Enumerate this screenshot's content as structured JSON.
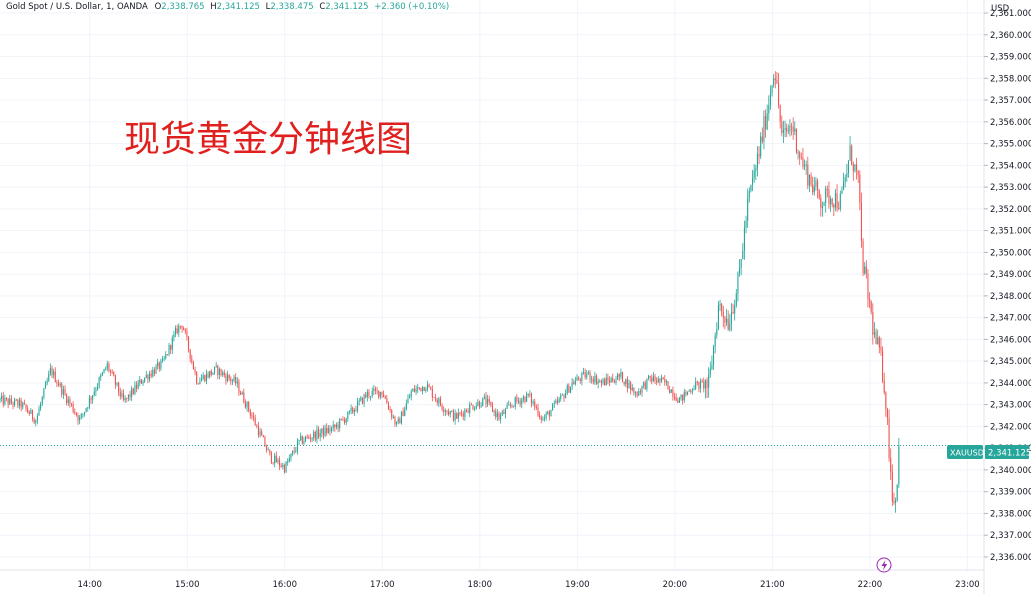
{
  "legend": {
    "symbol": "Gold Spot / U.S. Dollar, 1, OANDA",
    "o_label": "O",
    "o_value": "2,338.765",
    "h_label": "H",
    "h_value": "2,341.125",
    "l_label": "L",
    "l_value": "2,338.475",
    "c_label": "C",
    "c_value": "2,341.125",
    "change": "+2.360 (+0.10%)"
  },
  "annotation": "现货黄金分钟线图",
  "currency_label": "USD",
  "price_tag": {
    "symbol": "XAUUSD",
    "price": "2,341.125"
  },
  "lightning_icon": "lightning-icon",
  "colors": {
    "up": "#26a69a",
    "down": "#ef5350",
    "grid": "#f0f3fa",
    "axis_text": "#131722",
    "annotation": "#e0201e",
    "tag_bg": "#26a69a"
  },
  "chart_data": {
    "type": "candlestick",
    "title": "",
    "xlabel": "",
    "ylabel": "USD",
    "ylim": [
      2335.4,
      2361.6
    ],
    "x_range_hours": [
      13.08,
      23.17
    ],
    "x_ticks": [
      "14:00",
      "15:00",
      "16:00",
      "17:00",
      "18:00",
      "19:00",
      "20:00",
      "21:00",
      "22:00",
      "23:00"
    ],
    "y_ticks": [
      "2,336.000",
      "2,337.000",
      "2,338.000",
      "2,339.000",
      "2,340.000",
      "2,341.000",
      "2,342.000",
      "2,343.000",
      "2,344.000",
      "2,345.000",
      "2,346.000",
      "2,347.000",
      "2,348.000",
      "2,349.000",
      "2,350.000",
      "2,351.000",
      "2,352.000",
      "2,353.000",
      "2,354.000",
      "2,355.000",
      "2,356.000",
      "2,357.000",
      "2,358.000",
      "2,359.000",
      "2,360.000",
      "2,361.000"
    ],
    "last_price": 2341.125,
    "series": [
      {
        "name": "XAUUSD",
        "key_close_path": [
          [
            13.08,
            2343.2
          ],
          [
            13.3,
            2343.0
          ],
          [
            13.45,
            2342.3
          ],
          [
            13.6,
            2344.6
          ],
          [
            13.75,
            2343.4
          ],
          [
            13.9,
            2342.3
          ],
          [
            14.05,
            2343.7
          ],
          [
            14.18,
            2344.8
          ],
          [
            14.35,
            2343.1
          ],
          [
            14.55,
            2344.2
          ],
          [
            14.75,
            2344.9
          ],
          [
            14.9,
            2346.5
          ],
          [
            14.95,
            2346.7
          ],
          [
            15.1,
            2344.1
          ],
          [
            15.3,
            2344.6
          ],
          [
            15.5,
            2344.0
          ],
          [
            15.65,
            2342.6
          ],
          [
            15.85,
            2340.6
          ],
          [
            16.0,
            2340.1
          ],
          [
            16.15,
            2341.3
          ],
          [
            16.3,
            2341.6
          ],
          [
            16.5,
            2341.9
          ],
          [
            16.65,
            2342.5
          ],
          [
            16.85,
            2343.5
          ],
          [
            17.0,
            2343.6
          ],
          [
            17.15,
            2342.0
          ],
          [
            17.3,
            2343.6
          ],
          [
            17.45,
            2343.9
          ],
          [
            17.6,
            2343.0
          ],
          [
            17.75,
            2342.4
          ],
          [
            17.9,
            2342.9
          ],
          [
            18.05,
            2343.2
          ],
          [
            18.2,
            2342.4
          ],
          [
            18.35,
            2343.1
          ],
          [
            18.5,
            2343.4
          ],
          [
            18.65,
            2342.3
          ],
          [
            18.8,
            2343.1
          ],
          [
            18.95,
            2344.0
          ],
          [
            19.1,
            2344.4
          ],
          [
            19.25,
            2344.0
          ],
          [
            19.45,
            2344.3
          ],
          [
            19.6,
            2343.5
          ],
          [
            19.75,
            2344.2
          ],
          [
            19.9,
            2344.0
          ],
          [
            20.05,
            2343.2
          ],
          [
            20.2,
            2343.9
          ],
          [
            20.35,
            2343.9
          ],
          [
            20.45,
            2347.6
          ],
          [
            20.55,
            2346.8
          ],
          [
            20.65,
            2348.6
          ],
          [
            20.75,
            2352.3
          ],
          [
            20.85,
            2354.3
          ],
          [
            20.95,
            2356.6
          ],
          [
            21.02,
            2358.6
          ],
          [
            21.1,
            2355.2
          ],
          [
            21.2,
            2355.9
          ],
          [
            21.3,
            2354.2
          ],
          [
            21.4,
            2353.2
          ],
          [
            21.5,
            2352.4
          ],
          [
            21.6,
            2352.6
          ],
          [
            21.7,
            2352.3
          ],
          [
            21.8,
            2354.6
          ],
          [
            21.88,
            2353.3
          ],
          [
            21.92,
            2349.7
          ],
          [
            22.0,
            2347.5
          ],
          [
            22.05,
            2346.0
          ],
          [
            22.1,
            2345.4
          ],
          [
            22.15,
            2343.9
          ],
          [
            22.2,
            2340.8
          ],
          [
            22.24,
            2338.3
          ],
          [
            22.28,
            2339.5
          ],
          [
            22.3,
            2341.1
          ]
        ]
      }
    ]
  }
}
